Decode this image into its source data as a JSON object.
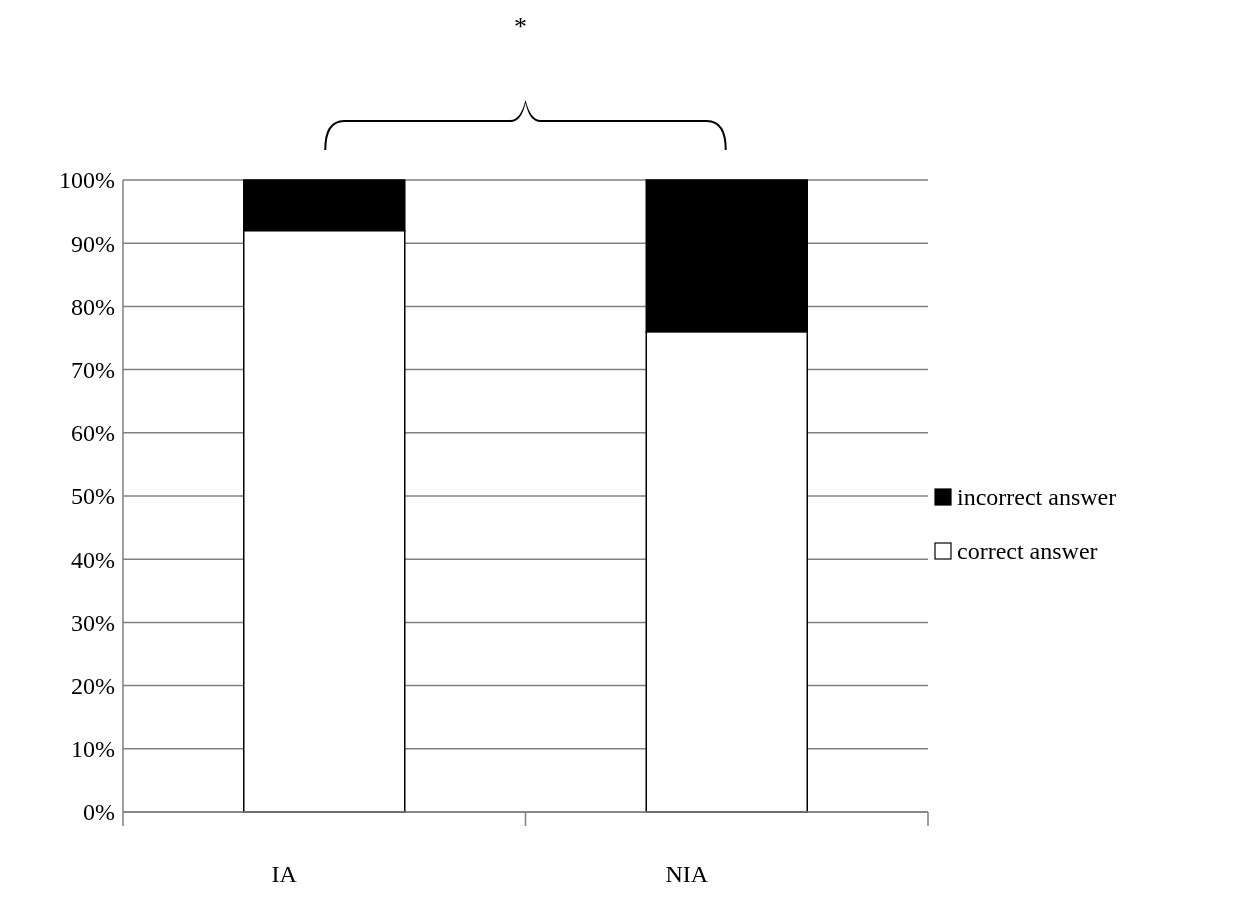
{
  "chart_data": {
    "type": "bar",
    "stacked": true,
    "categories": [
      "IA",
      "NIA"
    ],
    "series": [
      {
        "name": "correct answer",
        "color": "#ffffff",
        "values": [
          92,
          76
        ]
      },
      {
        "name": "incorrect answer",
        "color": "#000000",
        "values": [
          8,
          24
        ]
      }
    ],
    "ylim": [
      0,
      100
    ],
    "yticks": [
      {
        "value": 0,
        "label": "0%"
      },
      {
        "value": 10,
        "label": "10%"
      },
      {
        "value": 20,
        "label": "20%"
      },
      {
        "value": 30,
        "label": "30%"
      },
      {
        "value": 40,
        "label": "40%"
      },
      {
        "value": 50,
        "label": "50%"
      },
      {
        "value": 60,
        "label": "60%"
      },
      {
        "value": 70,
        "label": "70%"
      },
      {
        "value": 80,
        "label": "80%"
      },
      {
        "value": 90,
        "label": "90%"
      },
      {
        "value": 100,
        "label": "100%"
      }
    ],
    "grid": "y",
    "legend": "right",
    "annotations": [
      "*"
    ]
  }
}
